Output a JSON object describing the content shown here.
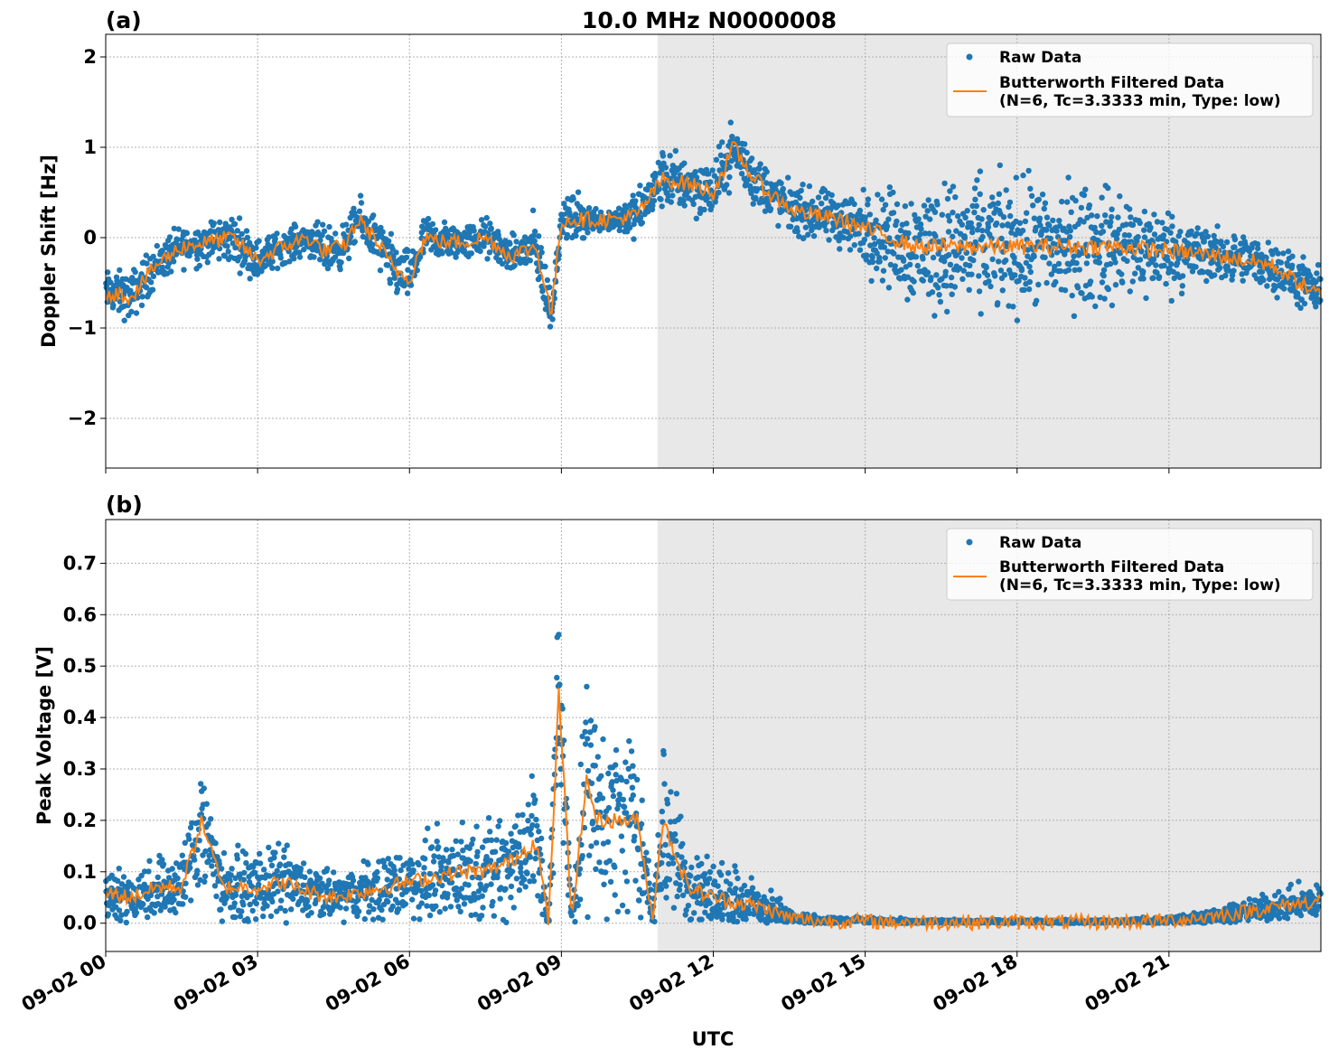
{
  "figure": {
    "title": "10.0 MHz N0000008",
    "xlabel": "UTC",
    "x_tick_labels": [
      "09-02 00",
      "09-02 03",
      "09-02 06",
      "09-02 09",
      "09-02 12",
      "09-02 15",
      "09-02 18",
      "09-02 21"
    ],
    "x_range_hours": [
      0,
      24
    ],
    "night_shade_start_hours": 10.9,
    "colors": {
      "raw": "#1f77b4",
      "filtered": "#ff7f0e",
      "shade": "#e8e8e8",
      "grid": "#b0b0b0"
    }
  },
  "legend": {
    "raw_label": "Raw Data",
    "filtered_label_line1": "Butterworth Filtered Data",
    "filtered_label_line2": "(N=6, Tc=3.3333 min, Type: low)"
  },
  "chart_data": [
    {
      "type": "scatter",
      "panel_label": "(a)",
      "ylabel": "Doppler Shift [Hz]",
      "ylim": [
        -2.55,
        2.25
      ],
      "y_ticks": [
        2,
        1,
        0,
        -1,
        -2
      ],
      "y_tick_labels": [
        "2",
        "1",
        "0",
        "−1",
        "−2"
      ],
      "grid": true,
      "legend_position": "top-right",
      "series": [
        {
          "name": "Raw Data",
          "description_points_hours": [
            0,
            0.5,
            1.0,
            1.5,
            2.0,
            2.5,
            3.0,
            3.5,
            4.0,
            4.3,
            4.7,
            5.0,
            5.3,
            5.7,
            6.0,
            6.3,
            6.7,
            7.0,
            7.5,
            8.0,
            8.5,
            8.8,
            9.0,
            9.3,
            9.6,
            10.0,
            10.5,
            11.0,
            11.5,
            12.0,
            12.4,
            12.8,
            13.2,
            13.6,
            14.0,
            14.5,
            15.0,
            15.5,
            16.0,
            17.0,
            18.0,
            19.0,
            20.0,
            21.0,
            22.0,
            23.0,
            24.0
          ],
          "description_spread": [
            0.25,
            0.3,
            0.25,
            0.25,
            0.25,
            0.3,
            0.25,
            0.2,
            0.2,
            0.3,
            0.25,
            0.25,
            0.3,
            0.35,
            0.3,
            0.25,
            0.25,
            0.2,
            0.25,
            0.2,
            0.4,
            0.3,
            0.15,
            0.35,
            0.15,
            0.15,
            0.3,
            0.35,
            0.35,
            0.35,
            0.35,
            0.35,
            0.3,
            0.3,
            0.3,
            0.35,
            0.45,
            0.6,
            0.75,
            0.8,
            0.8,
            0.75,
            0.7,
            0.5,
            0.3,
            0.3,
            0.3
          ]
        },
        {
          "name": "Butterworth Filtered Data (N=6, Tc=3.3333 min, Type: low)",
          "x_hours": [
            0,
            0.5,
            1.0,
            1.5,
            2.0,
            2.5,
            3.0,
            3.5,
            4.0,
            4.3,
            4.7,
            5.0,
            5.3,
            5.7,
            6.0,
            6.3,
            6.7,
            7.0,
            7.5,
            8.0,
            8.5,
            8.8,
            9.0,
            9.3,
            9.6,
            10.0,
            10.5,
            11.0,
            11.5,
            12.0,
            12.4,
            12.8,
            13.2,
            13.6,
            14.0,
            14.5,
            15.0,
            15.5,
            16.0,
            17.0,
            18.0,
            19.0,
            20.0,
            21.0,
            22.0,
            23.0,
            24.0
          ],
          "y": [
            -0.6,
            -0.65,
            -0.3,
            -0.1,
            -0.05,
            0.0,
            -0.25,
            -0.1,
            0.0,
            -0.15,
            -0.1,
            0.2,
            0.0,
            -0.35,
            -0.45,
            0.0,
            -0.05,
            -0.05,
            0.0,
            -0.2,
            -0.1,
            -0.85,
            0.2,
            0.2,
            0.2,
            0.2,
            0.25,
            0.65,
            0.6,
            0.5,
            1.0,
            0.65,
            0.45,
            0.3,
            0.25,
            0.2,
            0.1,
            0.0,
            -0.1,
            -0.1,
            -0.1,
            -0.1,
            -0.1,
            -0.15,
            -0.2,
            -0.3,
            -0.65
          ]
        }
      ]
    },
    {
      "type": "scatter",
      "panel_label": "(b)",
      "ylabel": "Peak Voltage [V]",
      "ylim": [
        -0.055,
        0.785
      ],
      "y_ticks": [
        0.0,
        0.1,
        0.2,
        0.3,
        0.4,
        0.5,
        0.6,
        0.7
      ],
      "y_tick_labels": [
        "0.0",
        "0.1",
        "0.2",
        "0.3",
        "0.4",
        "0.5",
        "0.6",
        "0.7"
      ],
      "grid": true,
      "legend_position": "top-right",
      "series": [
        {
          "name": "Raw Data",
          "description_points_hours": [
            0,
            0.5,
            1.0,
            1.5,
            1.9,
            2.3,
            3.0,
            3.5,
            4.0,
            4.5,
            5.0,
            5.5,
            6.0,
            6.5,
            7.0,
            7.5,
            8.0,
            8.5,
            8.75,
            8.95,
            9.2,
            9.5,
            9.7,
            10.0,
            10.5,
            10.8,
            11.0,
            11.5,
            12.0,
            12.5,
            13.0,
            13.5,
            14.0,
            15.0,
            16.0,
            17.0,
            18.0,
            19.0,
            20.0,
            21.0,
            22.0,
            23.0,
            24.0
          ],
          "description_spread": [
            0.06,
            0.05,
            0.07,
            0.07,
            0.15,
            0.07,
            0.07,
            0.08,
            0.06,
            0.05,
            0.06,
            0.07,
            0.08,
            0.09,
            0.1,
            0.1,
            0.12,
            0.16,
            0.02,
            0.25,
            0.02,
            0.25,
            0.2,
            0.2,
            0.2,
            0.02,
            0.2,
            0.1,
            0.08,
            0.07,
            0.05,
            0.02,
            0.01,
            0.01,
            0.005,
            0.005,
            0.005,
            0.005,
            0.005,
            0.01,
            0.02,
            0.03,
            0.04
          ]
        },
        {
          "name": "Butterworth Filtered Data (N=6, Tc=3.3333 min, Type: low)",
          "x_hours": [
            0,
            0.5,
            1.0,
            1.5,
            1.9,
            2.3,
            3.0,
            3.5,
            4.0,
            4.5,
            5.0,
            5.5,
            6.0,
            6.5,
            7.0,
            7.5,
            8.0,
            8.5,
            8.75,
            8.95,
            9.2,
            9.5,
            9.7,
            10.0,
            10.5,
            10.8,
            11.0,
            11.5,
            12.0,
            12.5,
            13.0,
            13.5,
            14.0,
            15.0,
            16.0,
            17.0,
            18.0,
            19.0,
            20.0,
            21.0,
            22.0,
            23.0,
            24.0
          ],
          "y": [
            0.06,
            0.05,
            0.07,
            0.07,
            0.2,
            0.07,
            0.07,
            0.08,
            0.06,
            0.05,
            0.06,
            0.07,
            0.08,
            0.09,
            0.1,
            0.1,
            0.12,
            0.16,
            0.0,
            0.45,
            0.01,
            0.28,
            0.2,
            0.2,
            0.2,
            0.01,
            0.2,
            0.07,
            0.05,
            0.04,
            0.03,
            0.01,
            0.005,
            0.003,
            0.002,
            0.002,
            0.002,
            0.002,
            0.002,
            0.005,
            0.015,
            0.03,
            0.045
          ]
        }
      ]
    }
  ]
}
